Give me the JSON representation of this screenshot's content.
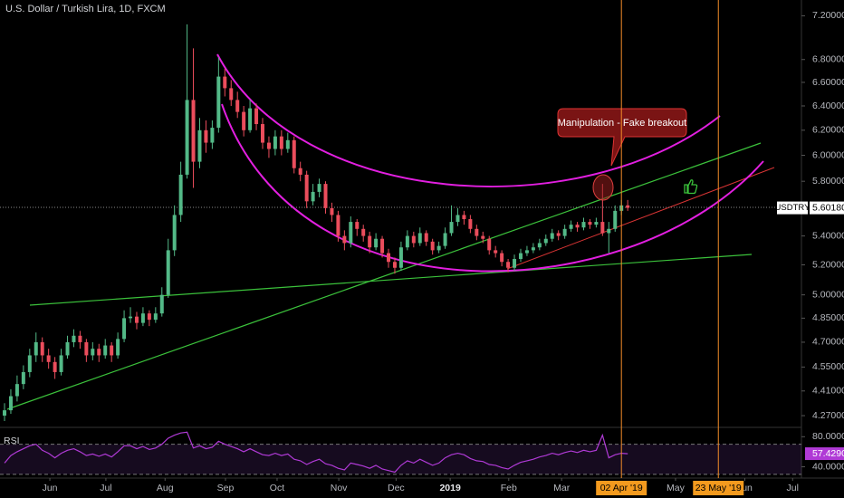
{
  "chart_data": {
    "type": "candlestick",
    "title": "U.S. Dollar / Turkish Lira, 1D, FXCM",
    "symbol": "USDTRY",
    "last_label": "5.60180",
    "up_color": "#53b987",
    "down_color": "#eb4d5c",
    "log_scale": true,
    "ylim": [
      4.215,
      7.35
    ],
    "yticks": [
      {
        "value": 7.2,
        "label": "7.20000"
      },
      {
        "value": 6.8,
        "label": "6.80000"
      },
      {
        "value": 6.6,
        "label": "6.60000"
      },
      {
        "value": 6.4,
        "label": "6.40000"
      },
      {
        "value": 6.2,
        "label": "6.20000"
      },
      {
        "value": 6.0,
        "label": "6.00000"
      },
      {
        "value": 5.8,
        "label": "5.80000"
      },
      {
        "value": 5.4,
        "label": "5.40000"
      },
      {
        "value": 5.2,
        "label": "5.20000"
      },
      {
        "value": 5.0,
        "label": "5.00000"
      },
      {
        "value": 4.85,
        "label": "4.85000"
      },
      {
        "value": 4.7,
        "label": "4.70000"
      },
      {
        "value": 4.55,
        "label": "4.55000"
      },
      {
        "value": 4.41,
        "label": "4.41000"
      },
      {
        "value": 4.27,
        "label": "4.27000"
      }
    ],
    "xlim": [
      -0.72,
      126.6
    ],
    "xticks": [
      {
        "value": 7.2,
        "label": "Jun"
      },
      {
        "value": 16.1,
        "label": "Jul"
      },
      {
        "value": 25.5,
        "label": "Aug"
      },
      {
        "value": 35.1,
        "label": "Sep"
      },
      {
        "value": 43.3,
        "label": "Oct"
      },
      {
        "value": 53.1,
        "label": "Nov"
      },
      {
        "value": 62.2,
        "label": "Dec"
      },
      {
        "value": 70.8,
        "label": "2019"
      },
      {
        "value": 80.1,
        "label": "Feb"
      },
      {
        "value": 88.5,
        "label": "Mar"
      },
      {
        "value": 106.6,
        "label": "May"
      },
      {
        "value": 117.6,
        "label": "Jun"
      },
      {
        "value": 125.2,
        "label": "Jul"
      }
    ],
    "vlines": [
      {
        "value": 98.0,
        "label": "02 Apr '19"
      },
      {
        "value": 113.4,
        "label": "23 May '19"
      }
    ],
    "annotation": "Manipulation - Fake breakout",
    "candles": [
      [
        4.27,
        4.34,
        4.24,
        4.3
      ],
      [
        4.3,
        4.42,
        4.28,
        4.38
      ],
      [
        4.38,
        4.5,
        4.35,
        4.45
      ],
      [
        4.45,
        4.56,
        4.42,
        4.52
      ],
      [
        4.52,
        4.66,
        4.49,
        4.62
      ],
      [
        4.62,
        4.76,
        4.58,
        4.7
      ],
      [
        4.7,
        4.73,
        4.58,
        4.62
      ],
      [
        4.62,
        4.66,
        4.54,
        4.58
      ],
      [
        4.58,
        4.61,
        4.48,
        4.52
      ],
      [
        4.52,
        4.66,
        4.5,
        4.62
      ],
      [
        4.62,
        4.74,
        4.6,
        4.7
      ],
      [
        4.7,
        4.78,
        4.67,
        4.74
      ],
      [
        4.74,
        4.77,
        4.66,
        4.7
      ],
      [
        4.7,
        4.72,
        4.58,
        4.62
      ],
      [
        4.62,
        4.7,
        4.59,
        4.66
      ],
      [
        4.66,
        4.69,
        4.58,
        4.62
      ],
      [
        4.62,
        4.72,
        4.6,
        4.68
      ],
      [
        4.68,
        4.7,
        4.58,
        4.62
      ],
      [
        4.62,
        4.76,
        4.6,
        4.72
      ],
      [
        4.72,
        4.9,
        4.7,
        4.85
      ],
      [
        4.85,
        4.92,
        4.82,
        4.86
      ],
      [
        4.86,
        4.89,
        4.78,
        4.82
      ],
      [
        4.82,
        4.92,
        4.8,
        4.88
      ],
      [
        4.88,
        4.9,
        4.8,
        4.84
      ],
      [
        4.84,
        4.92,
        4.82,
        4.88
      ],
      [
        4.88,
        5.05,
        4.86,
        5.0
      ],
      [
        5.0,
        5.38,
        4.98,
        5.3
      ],
      [
        5.3,
        5.62,
        5.26,
        5.55
      ],
      [
        5.55,
        5.95,
        5.5,
        5.85
      ],
      [
        5.85,
        7.12,
        5.82,
        6.45
      ],
      [
        6.45,
        6.9,
        5.75,
        5.95
      ],
      [
        5.95,
        6.3,
        5.9,
        6.2
      ],
      [
        6.2,
        6.28,
        6.02,
        6.1
      ],
      [
        6.1,
        6.28,
        6.05,
        6.22
      ],
      [
        6.22,
        6.82,
        6.18,
        6.65
      ],
      [
        6.65,
        6.72,
        6.48,
        6.55
      ],
      [
        6.55,
        6.62,
        6.4,
        6.45
      ],
      [
        6.45,
        6.52,
        6.3,
        6.35
      ],
      [
        6.35,
        6.4,
        6.15,
        6.2
      ],
      [
        6.2,
        6.45,
        6.18,
        6.38
      ],
      [
        6.38,
        6.42,
        6.2,
        6.25
      ],
      [
        6.25,
        6.3,
        6.05,
        6.1
      ],
      [
        6.1,
        6.15,
        5.98,
        6.05
      ],
      [
        6.05,
        6.2,
        6.0,
        6.15
      ],
      [
        6.15,
        6.2,
        6.0,
        6.05
      ],
      [
        6.05,
        6.18,
        6.02,
        6.12
      ],
      [
        6.12,
        6.15,
        5.86,
        5.9
      ],
      [
        5.9,
        5.95,
        5.8,
        5.85
      ],
      [
        5.85,
        5.88,
        5.6,
        5.65
      ],
      [
        5.65,
        5.78,
        5.62,
        5.72
      ],
      [
        5.72,
        5.82,
        5.68,
        5.78
      ],
      [
        5.78,
        5.8,
        5.56,
        5.6
      ],
      [
        5.6,
        5.64,
        5.5,
        5.55
      ],
      [
        5.55,
        5.58,
        5.36,
        5.4
      ],
      [
        5.4,
        5.44,
        5.3,
        5.35
      ],
      [
        5.35,
        5.54,
        5.32,
        5.5
      ],
      [
        5.5,
        5.52,
        5.4,
        5.45
      ],
      [
        5.45,
        5.48,
        5.36,
        5.4
      ],
      [
        5.4,
        5.43,
        5.28,
        5.32
      ],
      [
        5.32,
        5.42,
        5.3,
        5.38
      ],
      [
        5.38,
        5.4,
        5.25,
        5.28
      ],
      [
        5.28,
        5.31,
        5.18,
        5.22
      ],
      [
        5.22,
        5.25,
        5.14,
        5.18
      ],
      [
        5.18,
        5.36,
        5.16,
        5.32
      ],
      [
        5.32,
        5.44,
        5.3,
        5.4
      ],
      [
        5.4,
        5.43,
        5.32,
        5.35
      ],
      [
        5.35,
        5.46,
        5.33,
        5.42
      ],
      [
        5.42,
        5.44,
        5.33,
        5.36
      ],
      [
        5.36,
        5.38,
        5.27,
        5.3
      ],
      [
        5.3,
        5.36,
        5.28,
        5.33
      ],
      [
        5.33,
        5.46,
        5.31,
        5.42
      ],
      [
        5.42,
        5.62,
        5.4,
        5.5
      ],
      [
        5.5,
        5.6,
        5.47,
        5.55
      ],
      [
        5.55,
        5.58,
        5.48,
        5.52
      ],
      [
        5.52,
        5.55,
        5.42,
        5.45
      ],
      [
        5.45,
        5.48,
        5.37,
        5.4
      ],
      [
        5.4,
        5.43,
        5.35,
        5.38
      ],
      [
        5.38,
        5.4,
        5.27,
        5.3
      ],
      [
        5.3,
        5.33,
        5.25,
        5.28
      ],
      [
        5.28,
        5.3,
        5.19,
        5.22
      ],
      [
        5.22,
        5.24,
        5.15,
        5.18
      ],
      [
        5.18,
        5.27,
        5.16,
        5.24
      ],
      [
        5.24,
        5.31,
        5.22,
        5.28
      ],
      [
        5.28,
        5.33,
        5.26,
        5.3
      ],
      [
        5.3,
        5.35,
        5.28,
        5.32
      ],
      [
        5.32,
        5.38,
        5.3,
        5.35
      ],
      [
        5.35,
        5.41,
        5.33,
        5.38
      ],
      [
        5.38,
        5.45,
        5.36,
        5.42
      ],
      [
        5.42,
        5.44,
        5.37,
        5.4
      ],
      [
        5.4,
        5.48,
        5.38,
        5.45
      ],
      [
        5.45,
        5.51,
        5.43,
        5.48
      ],
      [
        5.48,
        5.5,
        5.43,
        5.46
      ],
      [
        5.46,
        5.53,
        5.44,
        5.5
      ],
      [
        5.5,
        5.52,
        5.45,
        5.48
      ],
      [
        5.48,
        5.53,
        5.46,
        5.5
      ],
      [
        5.5,
        5.78,
        5.4,
        5.42
      ],
      [
        5.42,
        5.5,
        5.28,
        5.45
      ],
      [
        5.45,
        5.62,
        5.43,
        5.58
      ],
      [
        5.58,
        5.66,
        5.55,
        5.62
      ],
      [
        5.62,
        5.66,
        5.58,
        5.6018
      ]
    ],
    "rsi": {
      "name": "RSI",
      "color": "#b03ad6",
      "last_label": "57.4290",
      "ylim": [
        25,
        90
      ],
      "yticks": [
        {
          "value": 80,
          "label": "80.0000"
        },
        {
          "value": 40,
          "label": "40.0000"
        }
      ],
      "band": [
        30,
        70
      ],
      "values": [
        45,
        55,
        60,
        64,
        68,
        70,
        62,
        58,
        52,
        58,
        62,
        64,
        60,
        55,
        57,
        54,
        57,
        53,
        60,
        68,
        68,
        64,
        67,
        63,
        65,
        70,
        78,
        82,
        85,
        86,
        65,
        68,
        64,
        66,
        74,
        70,
        67,
        64,
        60,
        64,
        60,
        56,
        55,
        58,
        55,
        57,
        50,
        48,
        43,
        47,
        50,
        44,
        42,
        38,
        36,
        45,
        43,
        41,
        38,
        42,
        37,
        35,
        33,
        42,
        48,
        45,
        50,
        46,
        42,
        45,
        52,
        56,
        58,
        56,
        51,
        48,
        47,
        43,
        42,
        39,
        37,
        42,
        46,
        48,
        50,
        53,
        55,
        58,
        56,
        59,
        61,
        59,
        62,
        60,
        62,
        82,
        52,
        56,
        58,
        57.429
      ]
    }
  }
}
